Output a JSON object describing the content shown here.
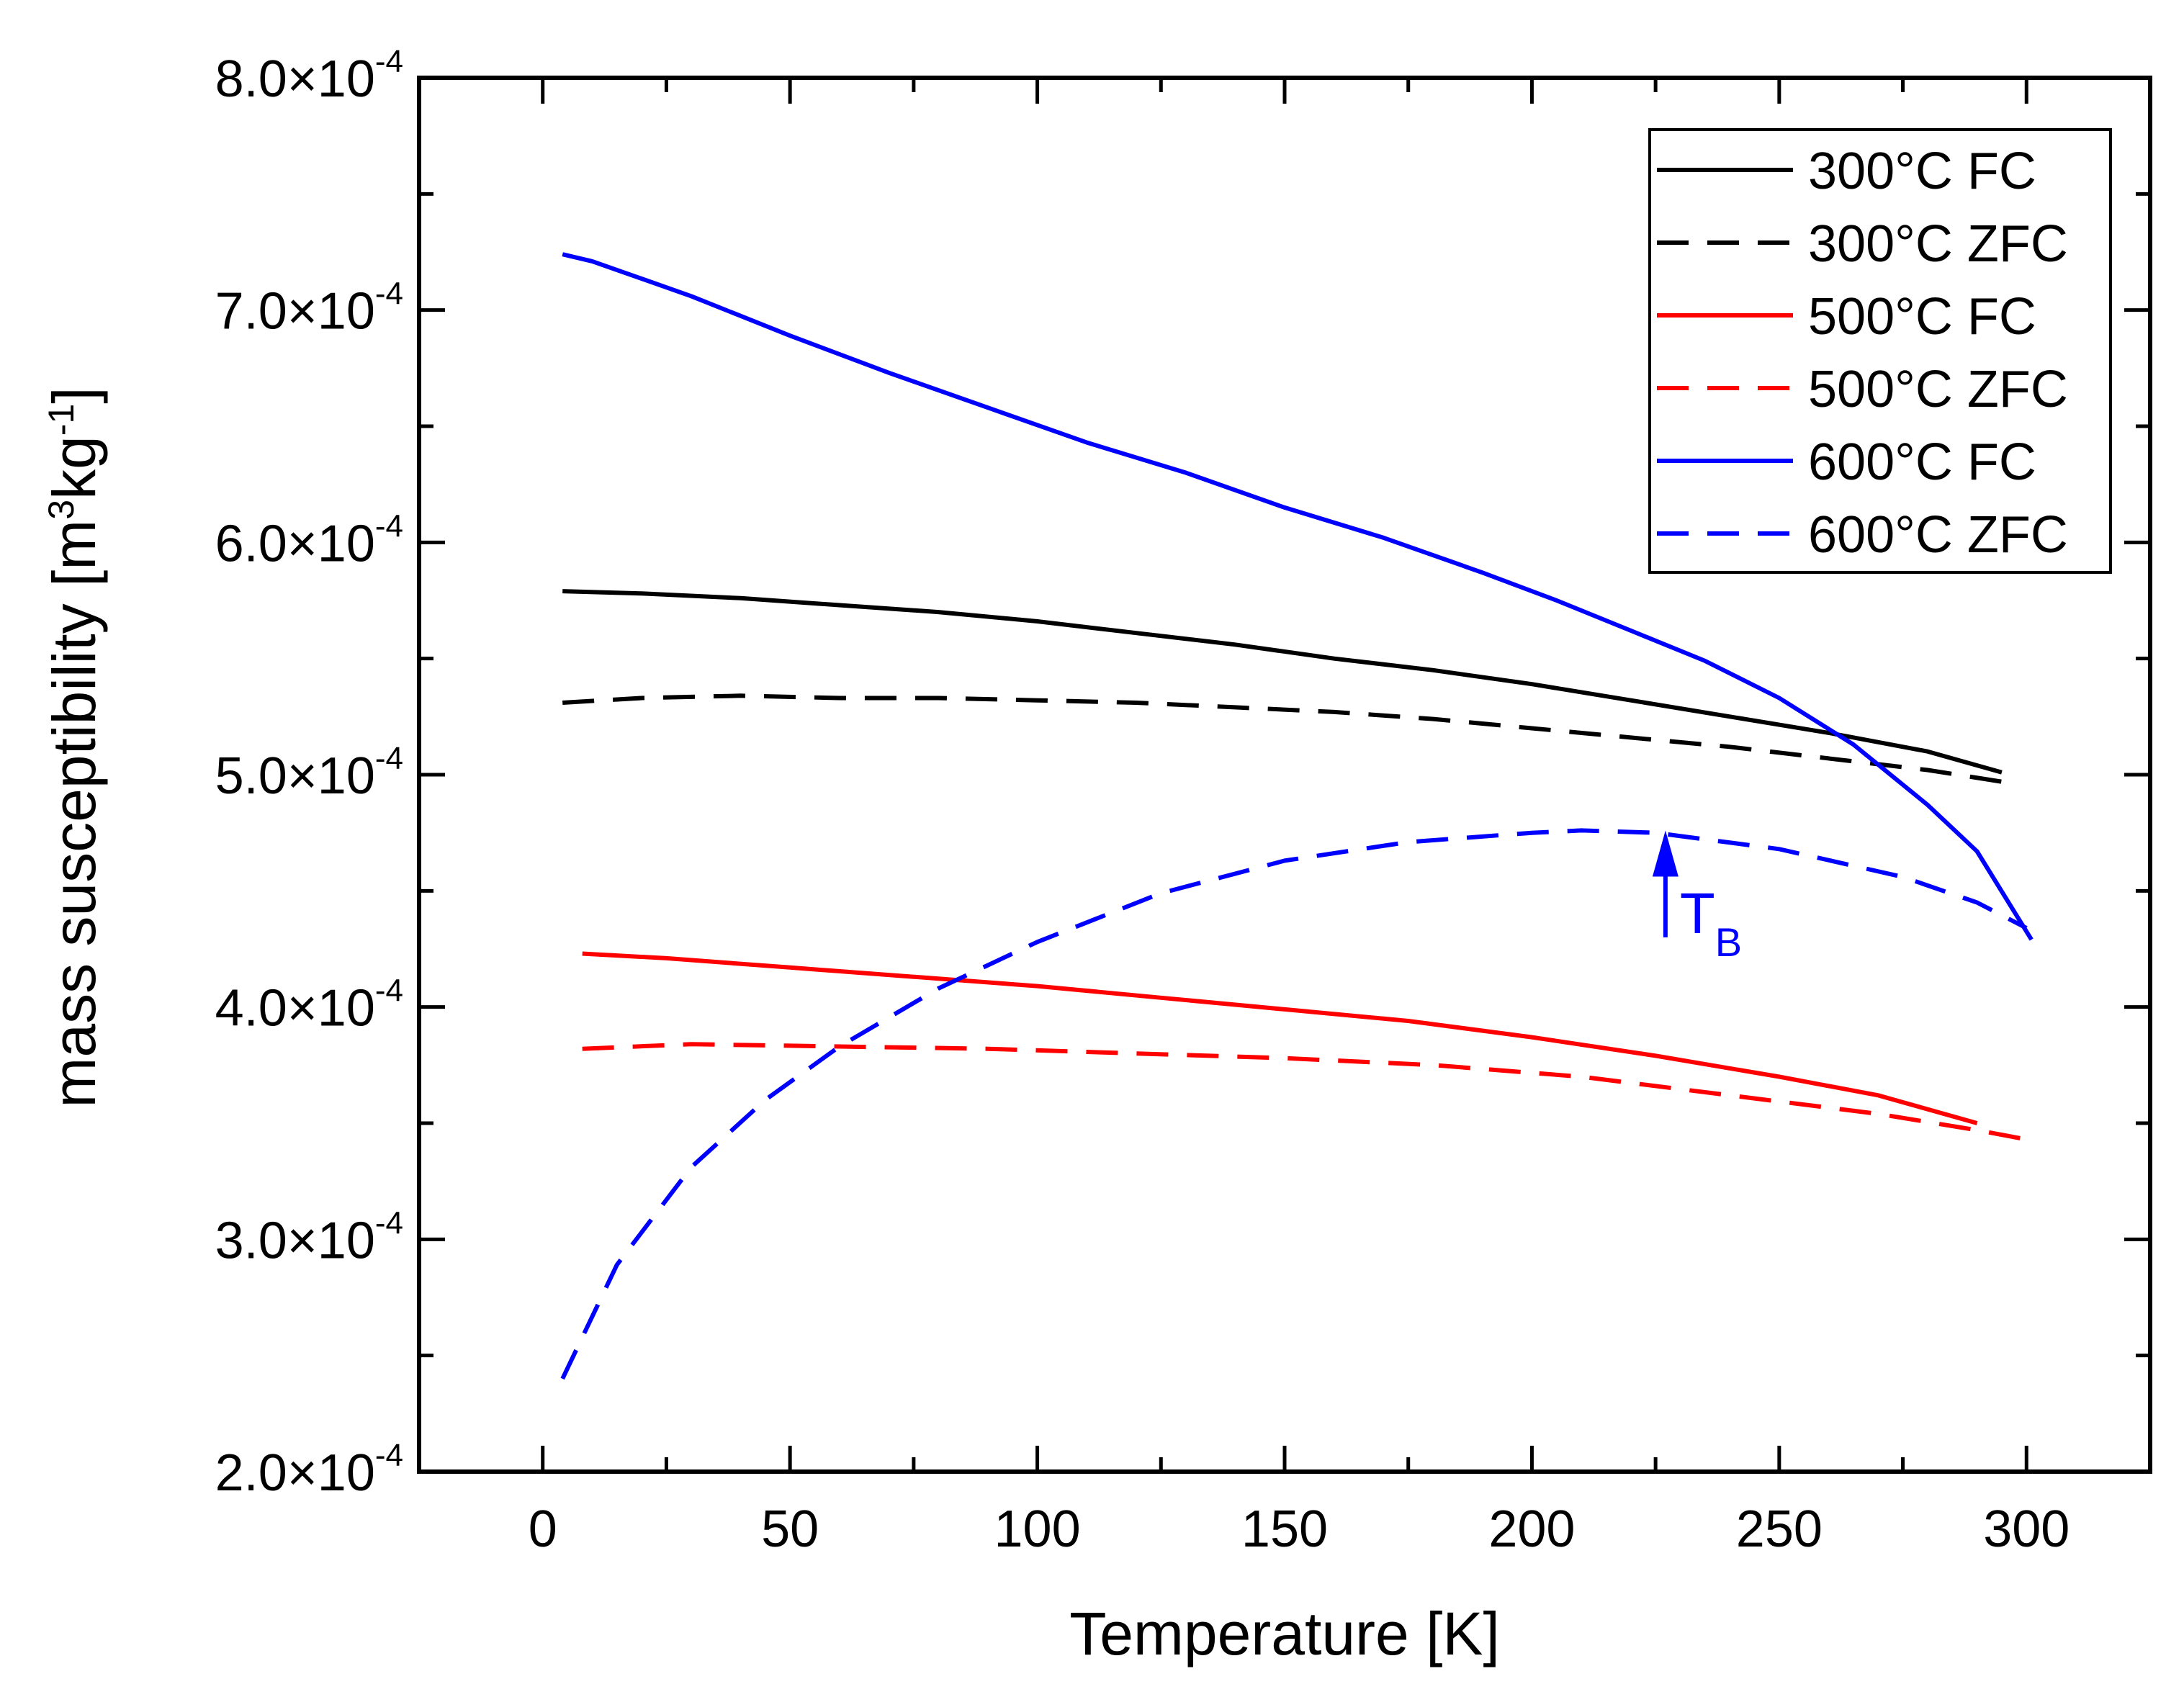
{
  "chart_data": {
    "type": "line",
    "title": "",
    "xlabel": "Temperature [K]",
    "ylabel": "mass susceptibility [m³kg⁻¹]",
    "ylabel_parts": {
      "pre": "mass susceptibility [m",
      "sup1": "3",
      "mid": "kg",
      "sup2": "-1",
      "post": "]"
    },
    "xlim": [
      -25,
      325
    ],
    "ylim": [
      0.0002,
      0.0008
    ],
    "x_ticks": [
      0,
      50,
      100,
      150,
      200,
      250,
      300
    ],
    "x_tick_labels": [
      "0",
      "50",
      "100",
      "150",
      "200",
      "250",
      "300"
    ],
    "y_ticks": [
      0.0002,
      0.0003,
      0.0004,
      0.0005,
      0.0006,
      0.0007,
      0.0008
    ],
    "y_tick_labels": [
      {
        "mant": "2.0×10",
        "exp": "-4"
      },
      {
        "mant": "3.0×10",
        "exp": "-4"
      },
      {
        "mant": "4.0×10",
        "exp": "-4"
      },
      {
        "mant": "5.0×10",
        "exp": "-4"
      },
      {
        "mant": "6.0×10",
        "exp": "-4"
      },
      {
        "mant": "7.0×10",
        "exp": "-4"
      },
      {
        "mant": "8.0×10",
        "exp": "-4"
      }
    ],
    "grid": false,
    "legend_position": "top-right",
    "series": [
      {
        "name": "300°C FC",
        "color": "#000000",
        "style": "solid",
        "x": [
          4,
          20,
          40,
          60,
          80,
          100,
          120,
          140,
          160,
          180,
          200,
          220,
          240,
          260,
          280,
          295
        ],
        "y": [
          0.000579,
          0.000578,
          0.000576,
          0.000573,
          0.00057,
          0.000566,
          0.000561,
          0.000556,
          0.00055,
          0.000545,
          0.000539,
          0.000532,
          0.000525,
          0.000518,
          0.00051,
          0.000501
        ]
      },
      {
        "name": "300°C ZFC",
        "color": "#000000",
        "style": "dashed",
        "x": [
          4,
          20,
          40,
          60,
          80,
          100,
          120,
          140,
          160,
          180,
          200,
          220,
          240,
          260,
          280,
          295
        ],
        "y": [
          0.000531,
          0.000533,
          0.000534,
          0.000533,
          0.000533,
          0.000532,
          0.000531,
          0.000529,
          0.000527,
          0.000524,
          0.00052,
          0.000516,
          0.000512,
          0.000507,
          0.000502,
          0.000497
        ]
      },
      {
        "name": "500°C FC",
        "color": "#ff0000",
        "style": "solid",
        "x": [
          8,
          25,
          50,
          75,
          100,
          125,
          150,
          175,
          200,
          225,
          250,
          270,
          290
        ],
        "y": [
          0.000423,
          0.000421,
          0.000417,
          0.000413,
          0.000409,
          0.000404,
          0.000399,
          0.000394,
          0.000387,
          0.000379,
          0.00037,
          0.000362,
          0.00035
        ]
      },
      {
        "name": "500°C ZFC",
        "color": "#ff0000",
        "style": "dashed",
        "x": [
          8,
          30,
          60,
          90,
          120,
          150,
          180,
          210,
          240,
          270,
          290,
          300
        ],
        "y": [
          0.000382,
          0.000384,
          0.000383,
          0.000382,
          0.00038,
          0.000378,
          0.000375,
          0.00037,
          0.000362,
          0.000354,
          0.000347,
          0.000343
        ]
      },
      {
        "name": "600°C FC",
        "color": "#0000ff",
        "style": "solid",
        "x": [
          4,
          10,
          30,
          50,
          70,
          90,
          110,
          130,
          150,
          170,
          190,
          205,
          220,
          235,
          250,
          265,
          280,
          290,
          301
        ],
        "y": [
          0.000724,
          0.000721,
          0.000706,
          0.000689,
          0.000673,
          0.000658,
          0.000643,
          0.00063,
          0.000615,
          0.000602,
          0.000587,
          0.000575,
          0.000562,
          0.000549,
          0.000533,
          0.000513,
          0.000487,
          0.000467,
          0.000429
        ]
      },
      {
        "name": "600°C ZFC",
        "color": "#0000ff",
        "style": "dashed",
        "x": [
          4,
          15,
          30,
          45,
          60,
          80,
          100,
          125,
          150,
          175,
          200,
          210,
          225,
          250,
          275,
          290,
          300
        ],
        "y": [
          0.00024,
          0.000289,
          0.000331,
          0.00036,
          0.000383,
          0.000408,
          0.000428,
          0.000449,
          0.000463,
          0.000471,
          0.000475,
          0.000476,
          0.000475,
          0.000468,
          0.000456,
          0.000445,
          0.000434
        ]
      }
    ],
    "annotations": [
      {
        "type": "arrow",
        "label": "T",
        "subscript": "B",
        "color": "#0000ff",
        "x": 227,
        "y_from": 0.00043,
        "y_to": 0.000476
      }
    ]
  }
}
